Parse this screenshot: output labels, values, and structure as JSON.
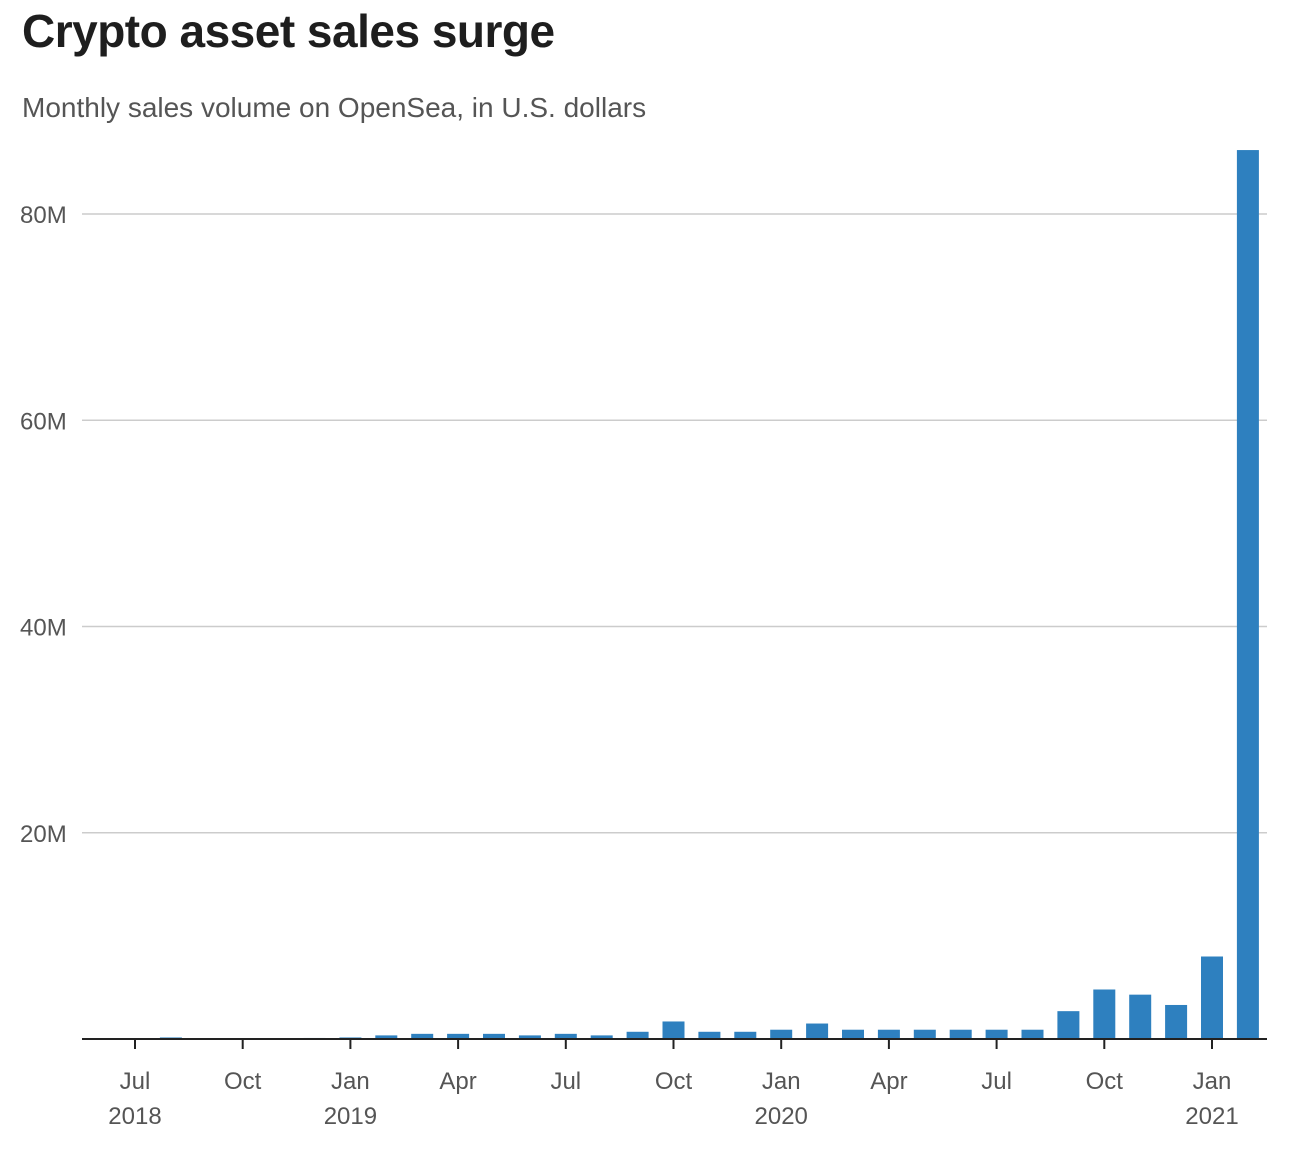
{
  "chart_data": {
    "type": "bar",
    "title": "Crypto asset sales surge",
    "subtitle": "Monthly sales volume on OpenSea, in U.S. dollars",
    "xlabel": "",
    "ylabel": "",
    "ylim": [
      0,
      86000000
    ],
    "y_ticks": [
      {
        "value": 20000000,
        "label": "20M"
      },
      {
        "value": 40000000,
        "label": "40M"
      },
      {
        "value": 60000000,
        "label": "60M"
      },
      {
        "value": 80000000,
        "label": "80M"
      }
    ],
    "x_ticks": [
      {
        "month": "2018-07",
        "label": "Jul",
        "year": "2018"
      },
      {
        "month": "2018-10",
        "label": "Oct",
        "year": ""
      },
      {
        "month": "2019-01",
        "label": "Jan",
        "year": "2019"
      },
      {
        "month": "2019-04",
        "label": "Apr",
        "year": ""
      },
      {
        "month": "2019-07",
        "label": "Jul",
        "year": ""
      },
      {
        "month": "2019-10",
        "label": "Oct",
        "year": ""
      },
      {
        "month": "2020-01",
        "label": "Jan",
        "year": "2020"
      },
      {
        "month": "2020-04",
        "label": "Apr",
        "year": ""
      },
      {
        "month": "2020-07",
        "label": "Jul",
        "year": ""
      },
      {
        "month": "2020-10",
        "label": "Oct",
        "year": ""
      },
      {
        "month": "2021-01",
        "label": "Jan",
        "year": "2021"
      }
    ],
    "categories": [
      "2018-07",
      "2018-08",
      "2018-09",
      "2018-10",
      "2018-11",
      "2018-12",
      "2019-01",
      "2019-02",
      "2019-03",
      "2019-04",
      "2019-05",
      "2019-06",
      "2019-07",
      "2019-08",
      "2019-09",
      "2019-10",
      "2019-11",
      "2019-12",
      "2020-01",
      "2020-02",
      "2020-03",
      "2020-04",
      "2020-05",
      "2020-06",
      "2020-07",
      "2020-08",
      "2020-09",
      "2020-10",
      "2020-11",
      "2020-12",
      "2021-01",
      "2021-02"
    ],
    "values": [
      0,
      150000,
      50000,
      50000,
      50000,
      100000,
      150000,
      350000,
      500000,
      500000,
      500000,
      350000,
      500000,
      350000,
      700000,
      1700000,
      700000,
      700000,
      900000,
      1500000,
      900000,
      900000,
      900000,
      900000,
      900000,
      900000,
      2700000,
      4800000,
      4300000,
      3300000,
      8000000,
      86200000
    ],
    "grid": true,
    "legend": "none",
    "bar_color": "#2e80bf"
  }
}
